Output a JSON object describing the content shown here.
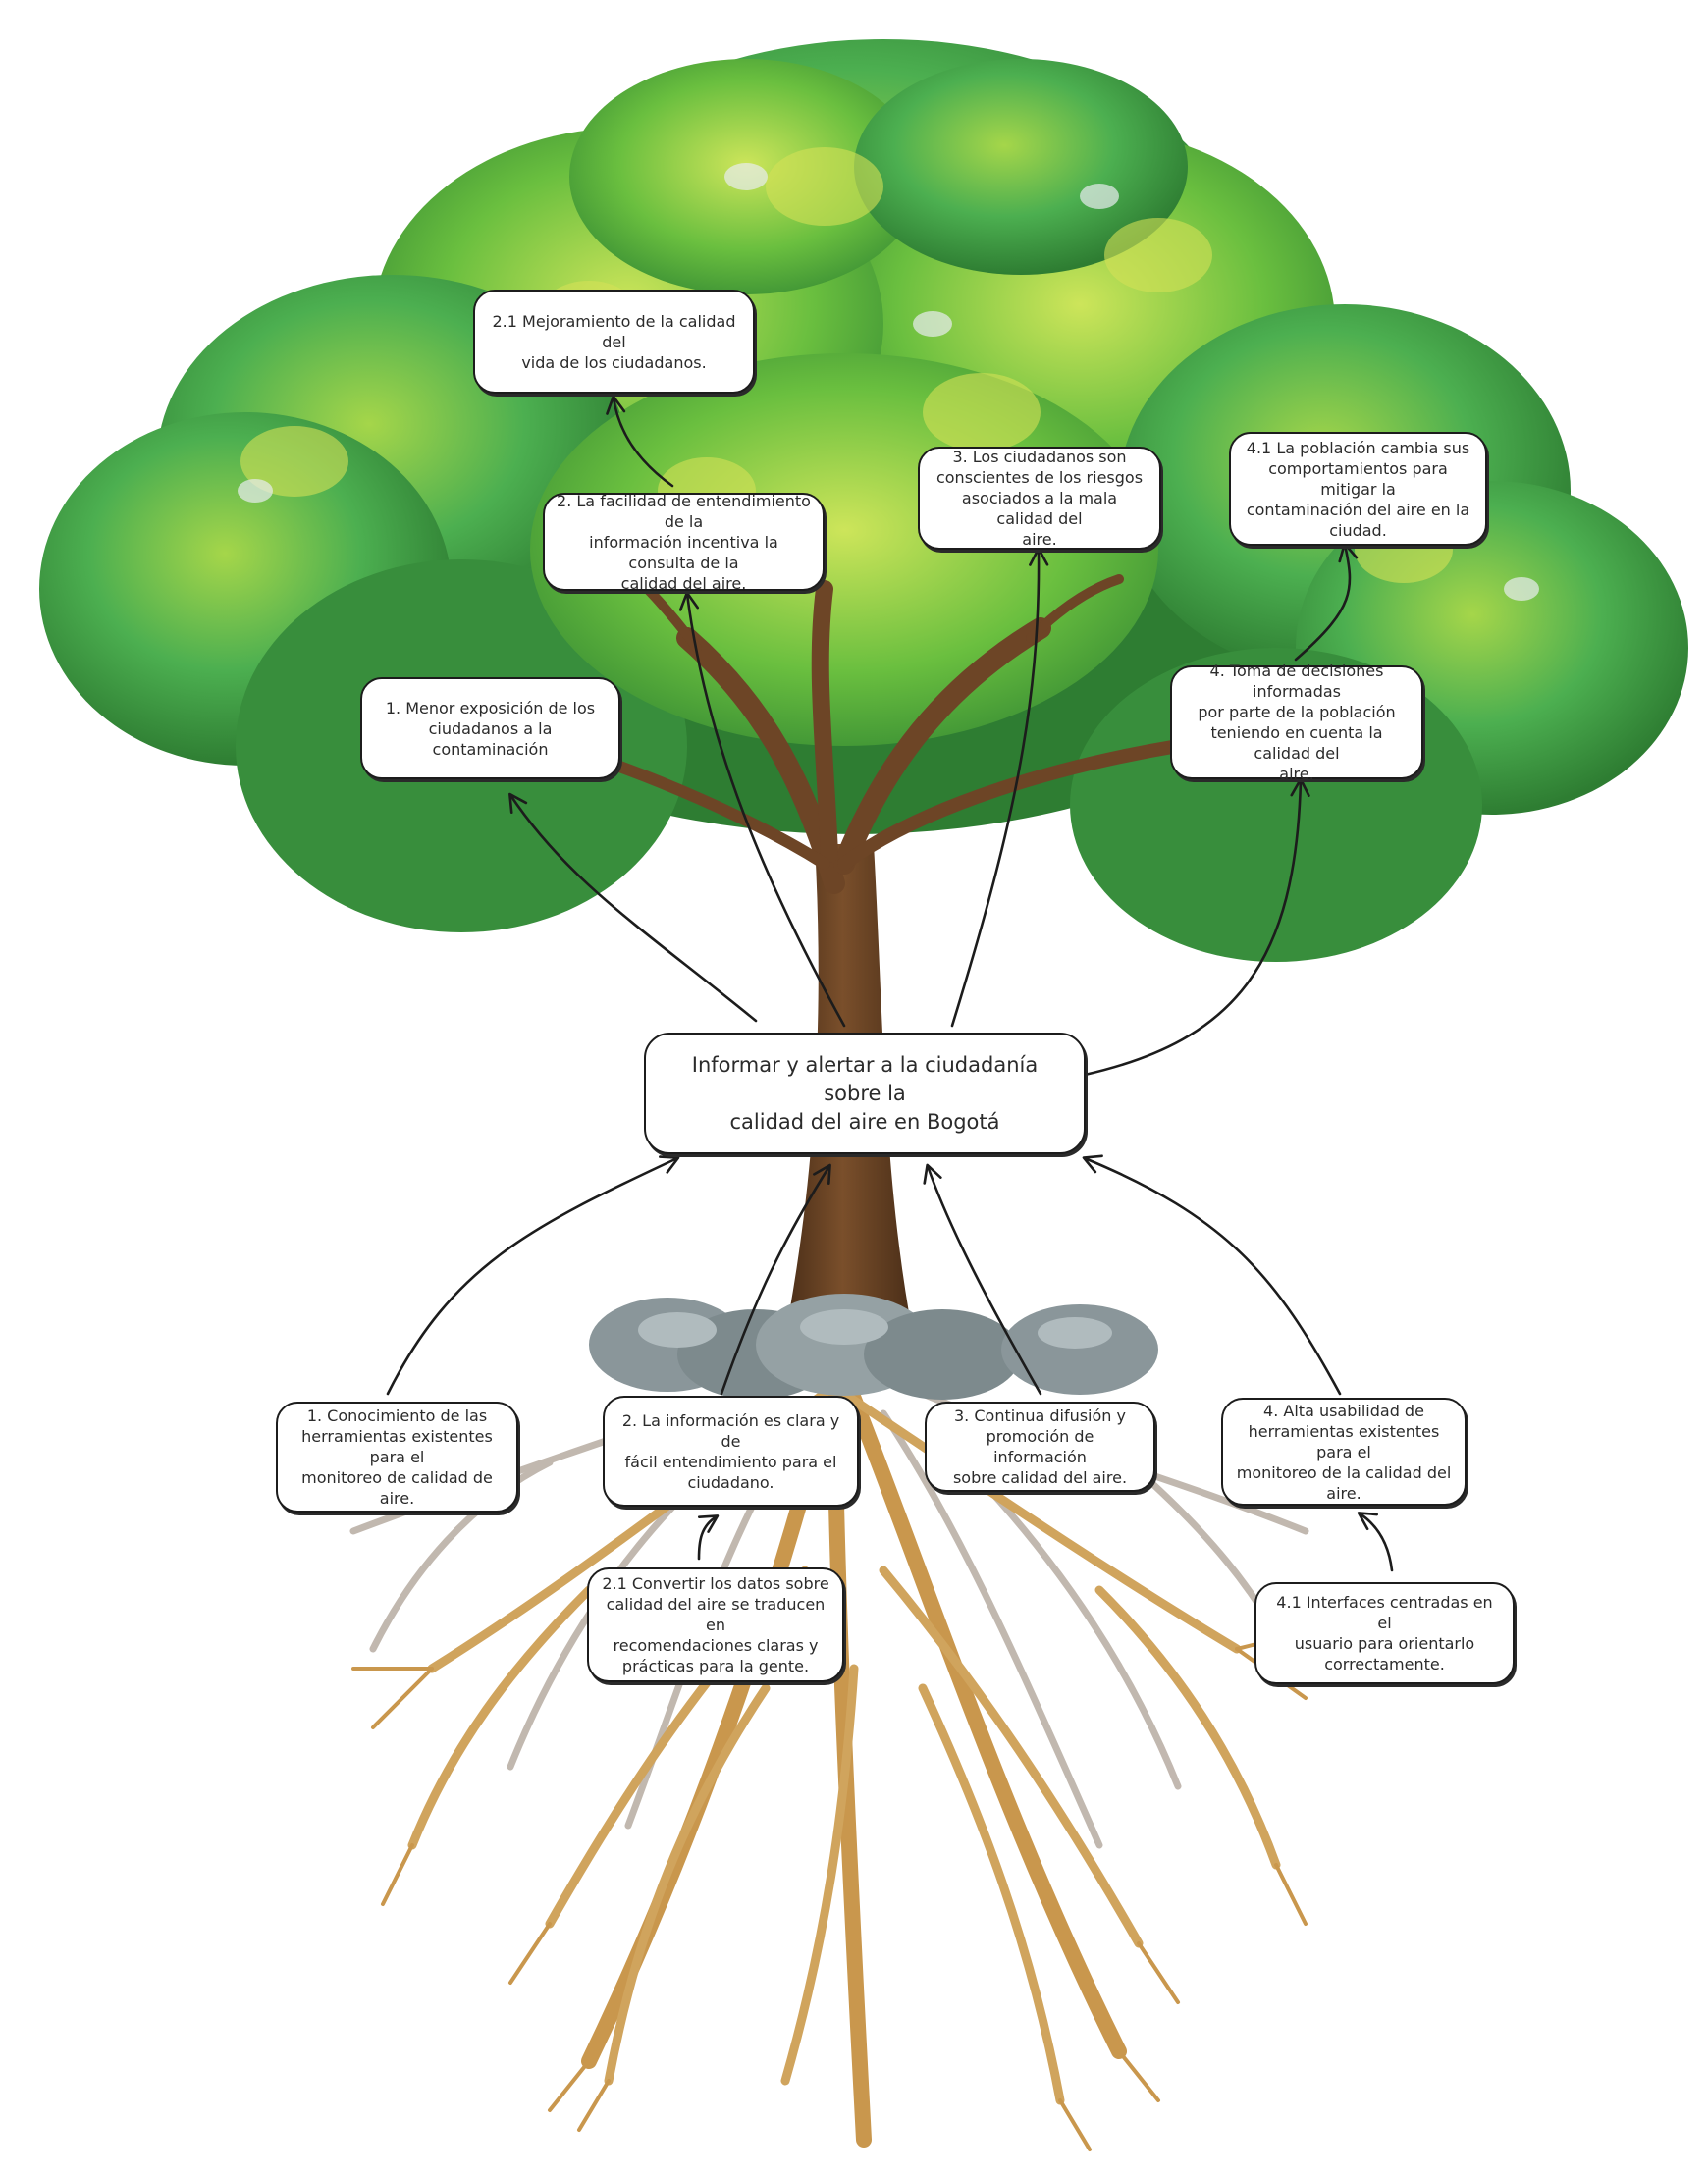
{
  "central": "Informar y alertar a la ciudadanía sobre la\ncalidad del aire en Bogotá",
  "effects": {
    "e1": "1. Menor exposición de los\nciudadanos a la contaminación",
    "e2": "2. La facilidad de entendimiento de la\ninformación incentiva la consulta de la\ncalidad del aire.",
    "e2_1": "2.1 Mejoramiento de la calidad del\nvida de los ciudadanos.",
    "e3": "3. Los ciudadanos son\nconscientes de los riesgos\nasociados a la mala calidad del\naire.",
    "e4": "4. Toma de decisiones informadas\npor parte de la población\nteniendo en cuenta la calidad del\naire.",
    "e4_1": "4.1 La población cambia sus\ncomportamientos para mitigar  la\ncontaminación del aire en la\nciudad."
  },
  "causes": {
    "c1": "1. Conocimiento de las\nherramientas existentes para el\nmonitoreo de calidad de aire.",
    "c2": "2. La información es clara y de\nfácil entendimiento para el\nciudadano.",
    "c2_1": "2.1 Convertir los datos sobre\ncalidad del aire se traducen en\nrecomendaciones claras y\nprácticas para la gente.",
    "c3": "3. Continua difusión y\npromoción de información\nsobre calidad del aire.",
    "c4": "4. Alta usabilidad de\nherramientas existentes para el\nmonitoreo de la calidad del aire.",
    "c4_1": "4.1 Interfaces centradas en el\nusuario para orientarlo\ncorrectamente."
  },
  "colors": {
    "canopy_dark": "#2f7d32",
    "canopy_mid": "#43a047",
    "canopy_light": "#8bc34a",
    "canopy_highlight": "#cddc39",
    "trunk": "#6d4526",
    "roots": "#c9974d",
    "roots_gray": "#a89a8c",
    "stones": "#7d8a8d",
    "box_border": "#1c1c1c"
  }
}
